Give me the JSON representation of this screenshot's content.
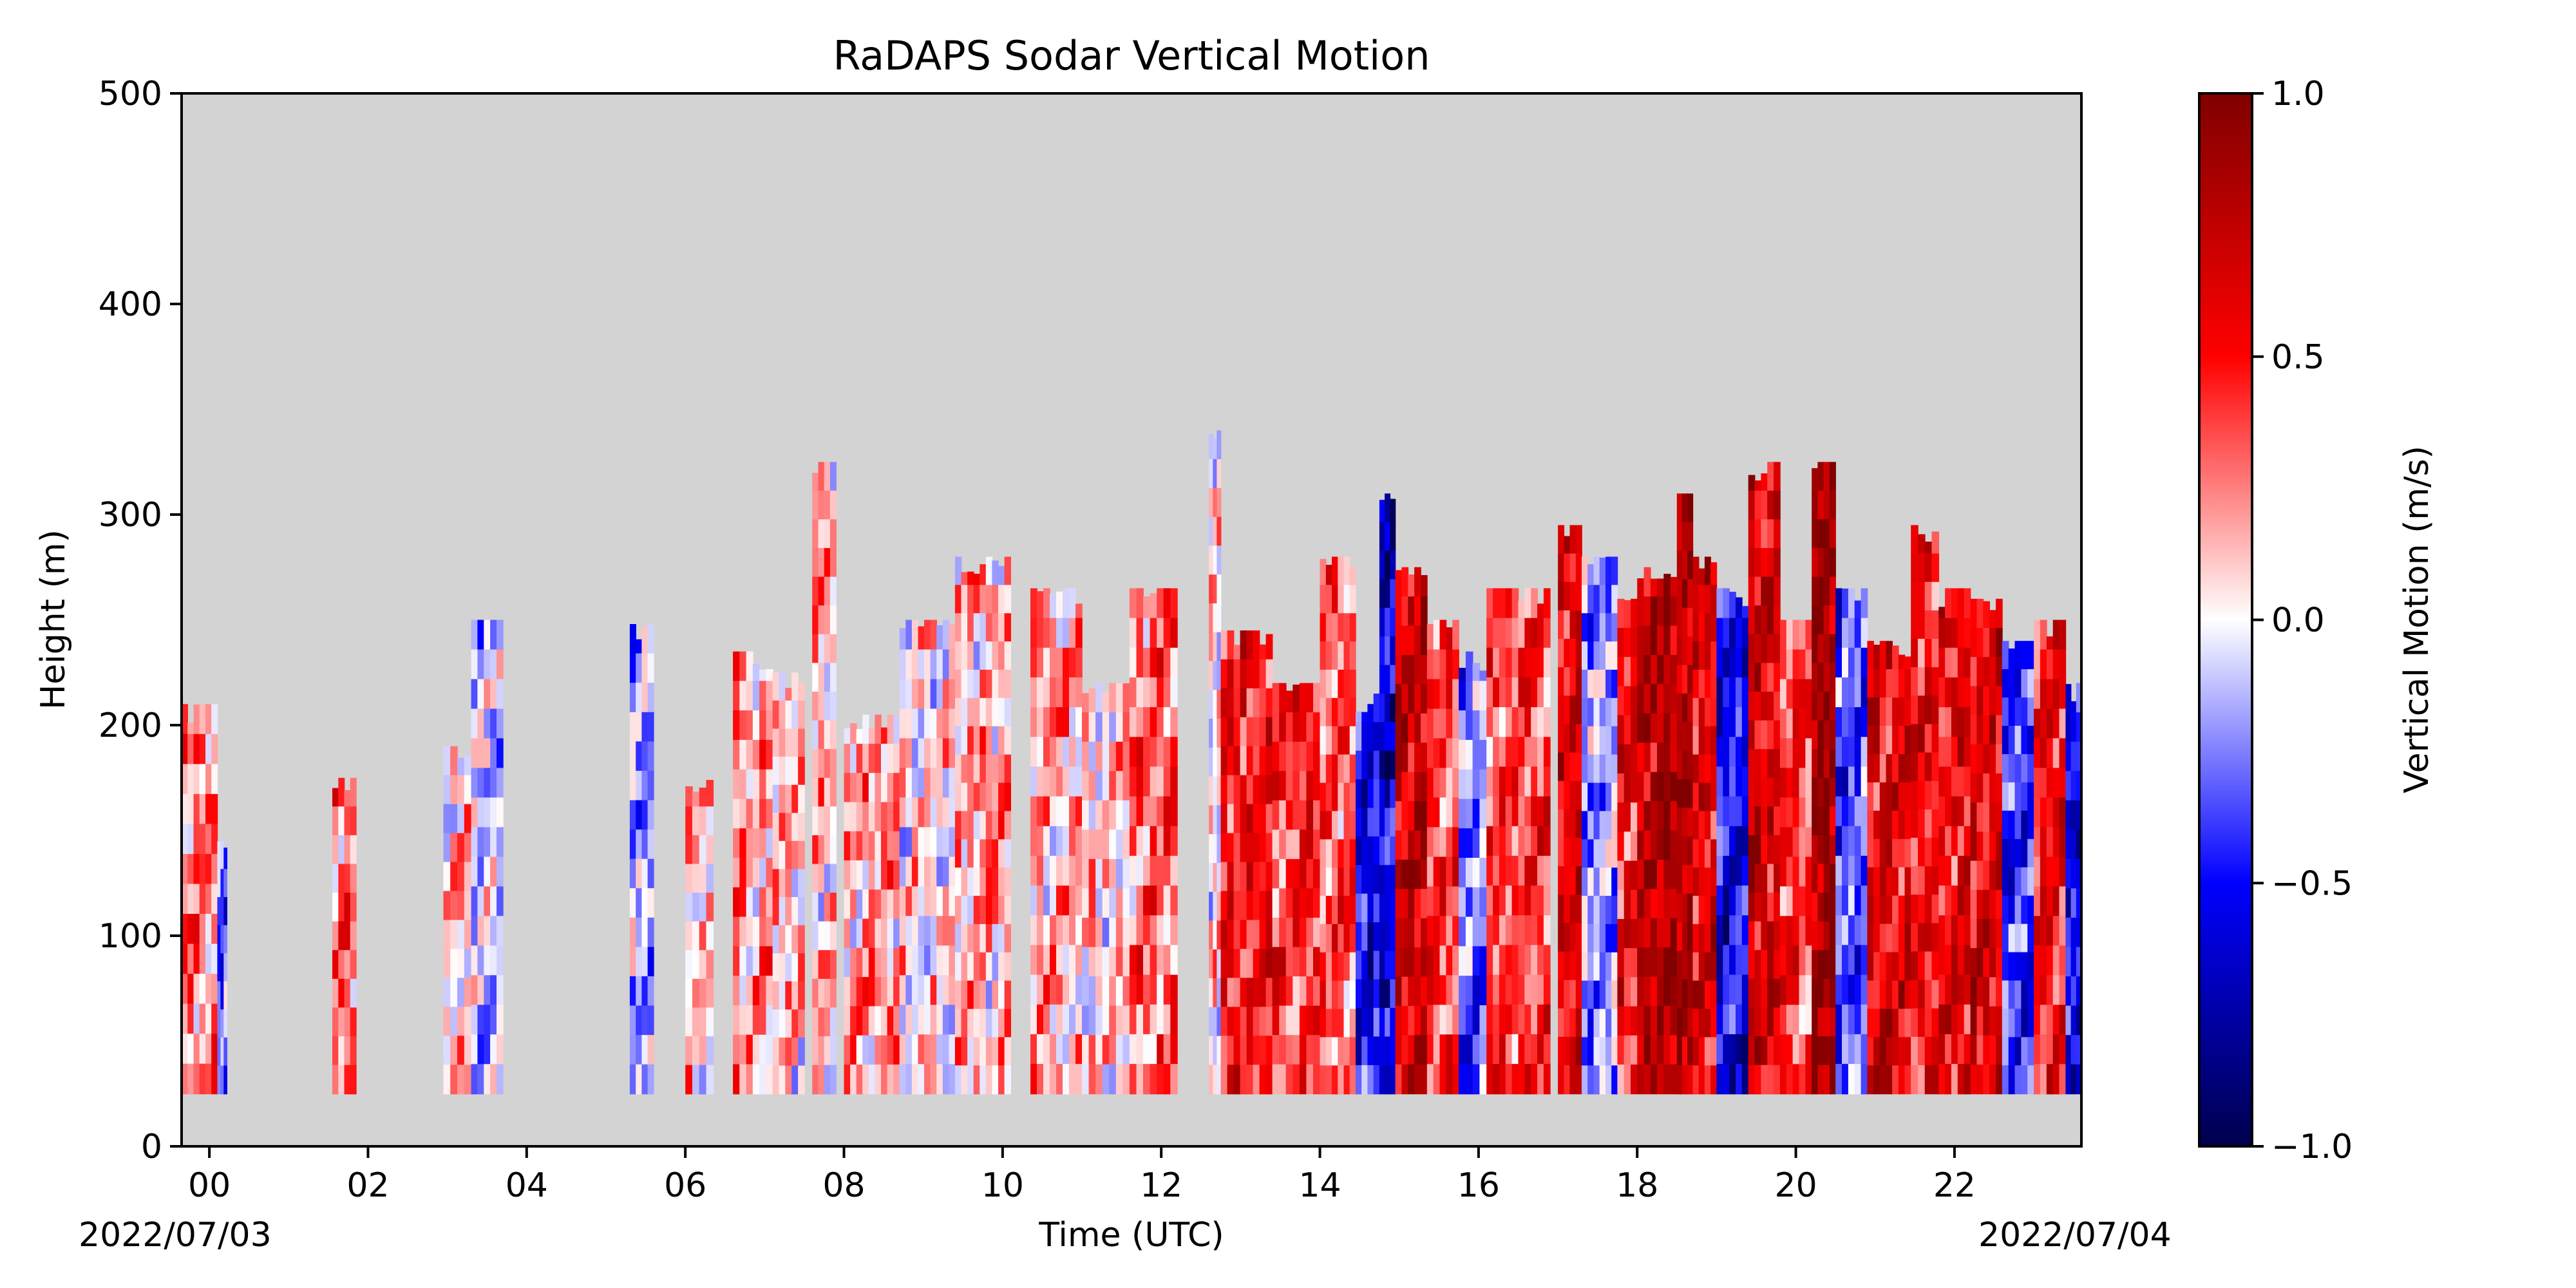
{
  "chart_data": {
    "type": "heatmap",
    "title": "RaDAPS Sodar Vertical Motion",
    "xlabel": "Time (UTC)",
    "ylabel": "Height (m)",
    "x_tick_labels": [
      "00",
      "02",
      "04",
      "06",
      "08",
      "10",
      "12",
      "14",
      "16",
      "18",
      "20",
      "22"
    ],
    "x_tick_hours": [
      0,
      2,
      4,
      6,
      8,
      10,
      12,
      14,
      16,
      18,
      20,
      22
    ],
    "xlim_hours": [
      -0.35,
      23.6
    ],
    "date_start": "2022/07/03",
    "date_end": "2022/07/04",
    "ylim": [
      0,
      500
    ],
    "y_ticks": [
      0,
      100,
      200,
      300,
      400,
      500
    ],
    "background_color": "#d3d3d3",
    "colormap": "seismic",
    "colorbar": {
      "label": "Vertical Motion (m/s)",
      "range": [
        -1.0,
        1.0
      ],
      "ticks": [
        -1.0,
        -0.5,
        0.0,
        0.5,
        1.0
      ],
      "tick_labels": [
        "−1.0",
        "−0.5",
        "0.0",
        "0.5",
        "1.0"
      ]
    },
    "min_height_m": 25,
    "profiles": [
      {
        "start": -0.35,
        "end": 0.1,
        "top": 210,
        "value": 0.25
      },
      {
        "start": 0.1,
        "end": 0.22,
        "top": 145,
        "value": -0.3
      },
      {
        "start": 1.55,
        "end": 1.85,
        "top": 175,
        "value": 0.3
      },
      {
        "start": 2.95,
        "end": 3.3,
        "top": 190,
        "value": 0.1
      },
      {
        "start": 3.3,
        "end": 3.7,
        "top": 250,
        "value": -0.1
      },
      {
        "start": 5.3,
        "end": 5.6,
        "top": 248,
        "value": -0.2
      },
      {
        "start": 6.0,
        "end": 6.35,
        "top": 175,
        "value": 0.15
      },
      {
        "start": 6.6,
        "end": 7.1,
        "top": 235,
        "value": 0.2
      },
      {
        "start": 7.1,
        "end": 7.5,
        "top": 225,
        "value": 0.1
      },
      {
        "start": 7.6,
        "end": 7.9,
        "top": 325,
        "value": 0.15
      },
      {
        "start": 8.0,
        "end": 8.7,
        "top": 205,
        "value": 0.2
      },
      {
        "start": 8.7,
        "end": 9.4,
        "top": 250,
        "value": 0.05
      },
      {
        "start": 9.4,
        "end": 10.1,
        "top": 280,
        "value": 0.15
      },
      {
        "start": 10.35,
        "end": 11.0,
        "top": 265,
        "value": 0.15
      },
      {
        "start": 11.0,
        "end": 11.6,
        "top": 220,
        "value": 0.1
      },
      {
        "start": 11.6,
        "end": 12.2,
        "top": 265,
        "value": 0.3
      },
      {
        "start": 12.6,
        "end": 12.75,
        "top": 340,
        "value": 0.05
      },
      {
        "start": 12.75,
        "end": 13.4,
        "top": 245,
        "value": 0.5
      },
      {
        "start": 13.4,
        "end": 14.0,
        "top": 220,
        "value": 0.4
      },
      {
        "start": 14.0,
        "end": 14.45,
        "top": 280,
        "value": 0.35
      },
      {
        "start": 14.45,
        "end": 14.75,
        "top": 215,
        "value": -0.5
      },
      {
        "start": 14.75,
        "end": 14.95,
        "top": 310,
        "value": -0.6
      },
      {
        "start": 14.95,
        "end": 15.35,
        "top": 275,
        "value": 0.7
      },
      {
        "start": 15.35,
        "end": 15.75,
        "top": 250,
        "value": 0.4
      },
      {
        "start": 15.75,
        "end": 16.1,
        "top": 235,
        "value": -0.3
      },
      {
        "start": 16.1,
        "end": 16.9,
        "top": 265,
        "value": 0.4
      },
      {
        "start": 17.0,
        "end": 17.3,
        "top": 295,
        "value": 0.6
      },
      {
        "start": 17.3,
        "end": 17.75,
        "top": 280,
        "value": -0.2
      },
      {
        "start": 17.75,
        "end": 18.0,
        "top": 260,
        "value": 0.5
      },
      {
        "start": 18.0,
        "end": 18.5,
        "top": 275,
        "value": 0.75
      },
      {
        "start": 18.5,
        "end": 18.7,
        "top": 310,
        "value": 0.85
      },
      {
        "start": 18.7,
        "end": 19.0,
        "top": 280,
        "value": 0.6
      },
      {
        "start": 19.0,
        "end": 19.4,
        "top": 265,
        "value": -0.55
      },
      {
        "start": 19.4,
        "end": 19.8,
        "top": 325,
        "value": 0.65
      },
      {
        "start": 19.8,
        "end": 20.2,
        "top": 250,
        "value": 0.4
      },
      {
        "start": 20.2,
        "end": 20.5,
        "top": 325,
        "value": 0.85
      },
      {
        "start": 20.5,
        "end": 20.9,
        "top": 265,
        "value": -0.35
      },
      {
        "start": 20.9,
        "end": 21.45,
        "top": 240,
        "value": 0.6
      },
      {
        "start": 21.45,
        "end": 21.8,
        "top": 295,
        "value": 0.5
      },
      {
        "start": 21.8,
        "end": 22.2,
        "top": 265,
        "value": 0.55
      },
      {
        "start": 22.2,
        "end": 22.6,
        "top": 260,
        "value": 0.65
      },
      {
        "start": 22.6,
        "end": 23.0,
        "top": 240,
        "value": -0.4
      },
      {
        "start": 23.0,
        "end": 23.4,
        "top": 250,
        "value": 0.5
      },
      {
        "start": 23.4,
        "end": 23.6,
        "top": 220,
        "value": -0.5
      }
    ]
  }
}
